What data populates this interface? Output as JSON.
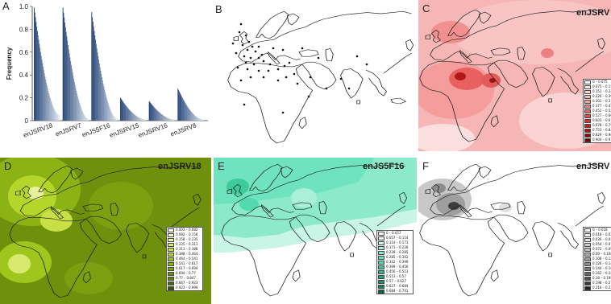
{
  "panels": {
    "A": {
      "label": "A"
    },
    "B": {
      "label": "B"
    },
    "C": {
      "label": "C",
      "title": "enJSRV"
    },
    "D": {
      "label": "D",
      "title": "enJSRV18"
    },
    "E": {
      "label": "E",
      "title": "enJS5F16"
    },
    "F": {
      "label": "F",
      "title": "enJSRV"
    }
  },
  "chart_data": {
    "type": "bar",
    "ylabel": "Frequency",
    "ylim": [
      0,
      1.0
    ],
    "yticks": [
      "0",
      "0.2",
      "0.4",
      "0.6",
      "0.8",
      "1.0"
    ],
    "categories": [
      "enJSRV18",
      "enJSRV7",
      "enJS5F16",
      "enJSRV15",
      "enJSRV16",
      "enJSRV8"
    ],
    "groups": [
      {
        "name": "enJSRV18",
        "start": 0.99,
        "end": 0.05
      },
      {
        "name": "enJSRV7",
        "start": 0.99,
        "end": 0.02
      },
      {
        "name": "enJS5F16",
        "start": 0.95,
        "end": 0.02
      },
      {
        "name": "enJSRV15",
        "start": 0.2,
        "end": 0.01
      },
      {
        "name": "enJSRV16",
        "start": 0.17,
        "end": 0.01
      },
      {
        "name": "enJSRV8",
        "start": 0.28,
        "end": 0.01
      }
    ]
  },
  "legends": {
    "C": [
      "0 – 0.075",
      "0.075 – 0.15",
      "0.151 – 0.226",
      "0.226 – 0.301",
      "0.301 – 0.377",
      "0.377 – 0.452",
      "0.452 – 0.527",
      "0.527 – 0.603",
      "0.603 – 0.678",
      "0.678 – 0.753",
      "0.753 – 0.829",
      "0.829 – 0.904",
      "0.904 – 0.979"
    ],
    "D": [
      "0.003 – 0.082",
      "0.082 – 0.158",
      "0.158 – 0.235",
      "0.235 – 0.311",
      "0.311 – 0.388",
      "0.388 – 0.464",
      "0.464 – 0.541",
      "0.541 – 0.617",
      "0.617 – 0.694",
      "0.694 – 0.77",
      "0.77 – 0.847",
      "0.847 – 0.923",
      "0.923 – 0.999"
    ],
    "E": [
      "0 – 0.057",
      "0.057 – 0.114",
      "0.114 – 0.171",
      "0.171 – 0.228",
      "0.228 – 0.285",
      "0.285 – 0.342",
      "0.342 – 0.399",
      "0.399 – 0.456",
      "0.456 – 0.513",
      "0.513 – 0.57",
      "0.57 – 0.627",
      "0.627 – 0.684",
      "0.684 – 0.741"
    ],
    "F": [
      "0 – 0.018",
      "0.018 – 0.036",
      "0.036 – 0.054",
      "0.054 – 0.072",
      "0.072 – 0.09",
      "0.09 – 0.108",
      "0.108 – 0.126",
      "0.126 – 0.144",
      "0.144 – 0.162",
      "0.162 – 0.18",
      "0.18 – 0.198",
      "0.198 – 0.216",
      "0.216 – 0.234"
    ]
  },
  "colors": {
    "C": [
      "#ffffff",
      "#fde6e6",
      "#fbd0d0",
      "#f8b9b9",
      "#f5a0a0",
      "#f08585",
      "#e96a6a",
      "#e04e4e",
      "#d43434",
      "#c41f1f",
      "#ad1212",
      "#8f0b0b",
      "#6d0606"
    ],
    "D": [
      "#ffffff",
      "#f1f8c4",
      "#e5f29a",
      "#d7ea6d",
      "#c8e046",
      "#b4d52a",
      "#9fc61c",
      "#8cb314",
      "#7ba00f",
      "#6e900c",
      "#5f7e0a",
      "#4f6a08",
      "#3e5506"
    ],
    "E": [
      "#ffffff",
      "#e6fbf4",
      "#c9f5e6",
      "#aaf0d9",
      "#8ceacb",
      "#6ee3bd",
      "#52d9ad",
      "#3dcb9c",
      "#2fb98a",
      "#24a678",
      "#1b9268",
      "#137d57",
      "#0c6746"
    ],
    "F": [
      "#ffffff",
      "#f0f0f0",
      "#e0e0e0",
      "#d0d0d0",
      "#bfbfbf",
      "#afafaf",
      "#9e9e9e",
      "#8c8c8c",
      "#7a7a7a",
      "#676767",
      "#535353",
      "#3d3d3d",
      "#242424"
    ]
  }
}
